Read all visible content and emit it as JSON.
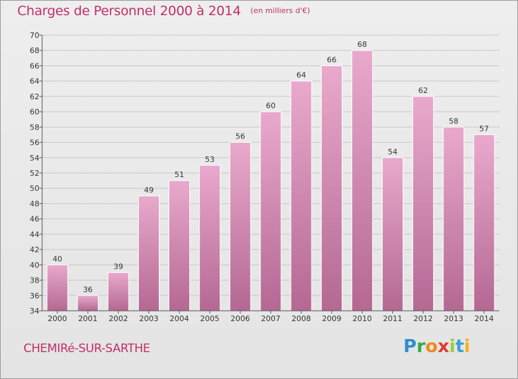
{
  "title": "Charges de Personnel 2000 à 2014",
  "subtitle": "(en milliers d'€)",
  "commune": "CHEMIRé-SUR-SARTHE",
  "logo": [
    "P",
    "r",
    "o",
    "x",
    "i",
    "t",
    "i"
  ],
  "colors": {
    "bar_top": "#e9a9cc",
    "bar_bottom": "#b46893",
    "text_accent": "#c0306a",
    "grid": "#c8c8c8"
  },
  "chart_data": {
    "type": "bar",
    "title": "Charges de Personnel 2000 à 2014",
    "subtitle": "(en milliers d'€)",
    "categories": [
      "2000",
      "2001",
      "2002",
      "2003",
      "2004",
      "2005",
      "2006",
      "2007",
      "2008",
      "2009",
      "2010",
      "2011",
      "2012",
      "2013",
      "2014"
    ],
    "values": [
      40,
      36,
      39,
      49,
      51,
      53,
      56,
      60,
      64,
      66,
      68,
      54,
      62,
      58,
      57
    ],
    "ylim": [
      34,
      70
    ],
    "yticks": [
      34,
      36,
      38,
      40,
      42,
      44,
      46,
      48,
      50,
      52,
      54,
      56,
      58,
      60,
      62,
      64,
      66,
      68,
      70
    ],
    "grid": true
  }
}
